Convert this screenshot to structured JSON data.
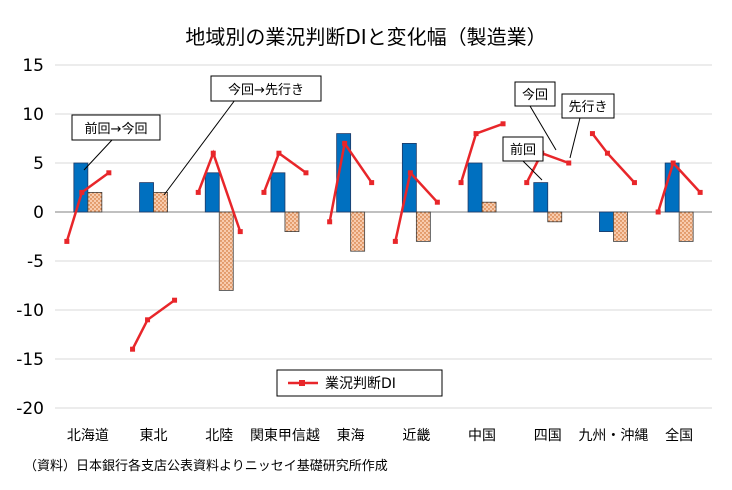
{
  "chart_data": {
    "type": "bar",
    "title": "地域別の業況判断DIと変化幅（製造業）",
    "categories": [
      "北海道",
      "東北",
      "北陸",
      "関東甲信越",
      "東海",
      "近畿",
      "中国",
      "四国",
      "九州・沖縄",
      "全国"
    ],
    "ylim": [
      -20,
      15
    ],
    "yticks": [
      15,
      10,
      5,
      0,
      -5,
      -10,
      -15,
      -20
    ],
    "series": [
      {
        "name": "",
        "kind": "bar",
        "color": "#0070C0",
        "values": [
          5,
          3,
          4,
          4,
          8,
          7,
          5,
          3,
          -2,
          5
        ]
      },
      {
        "name": "",
        "kind": "bar",
        "color": "#F8CBAD",
        "pattern": "dots",
        "values": [
          2,
          2,
          -8,
          -2,
          -4,
          -3,
          1,
          -1,
          -3,
          -3
        ]
      },
      {
        "name": "業況判断DI",
        "kind": "line",
        "color": "#E8262A",
        "triples": [
          [
            -3,
            2,
            4
          ],
          [
            -14,
            -11,
            -9
          ],
          [
            2,
            6,
            -2
          ],
          [
            2,
            6,
            4
          ],
          [
            -1,
            7,
            3
          ],
          [
            -3,
            4,
            1
          ],
          [
            3,
            8,
            9
          ],
          [
            3,
            6,
            5
          ],
          [
            8,
            6,
            3
          ],
          [
            0,
            5,
            2
          ]
        ]
      }
    ],
    "annotations": [
      "前回→今回",
      "今回→先行き",
      "今回",
      "先行き",
      "前回"
    ],
    "legend": {
      "position": "bottom-center",
      "label": "業況判断DI"
    },
    "source": "（資料）日本銀行各支店公表資料よりニッセイ基礎研究所作成"
  }
}
